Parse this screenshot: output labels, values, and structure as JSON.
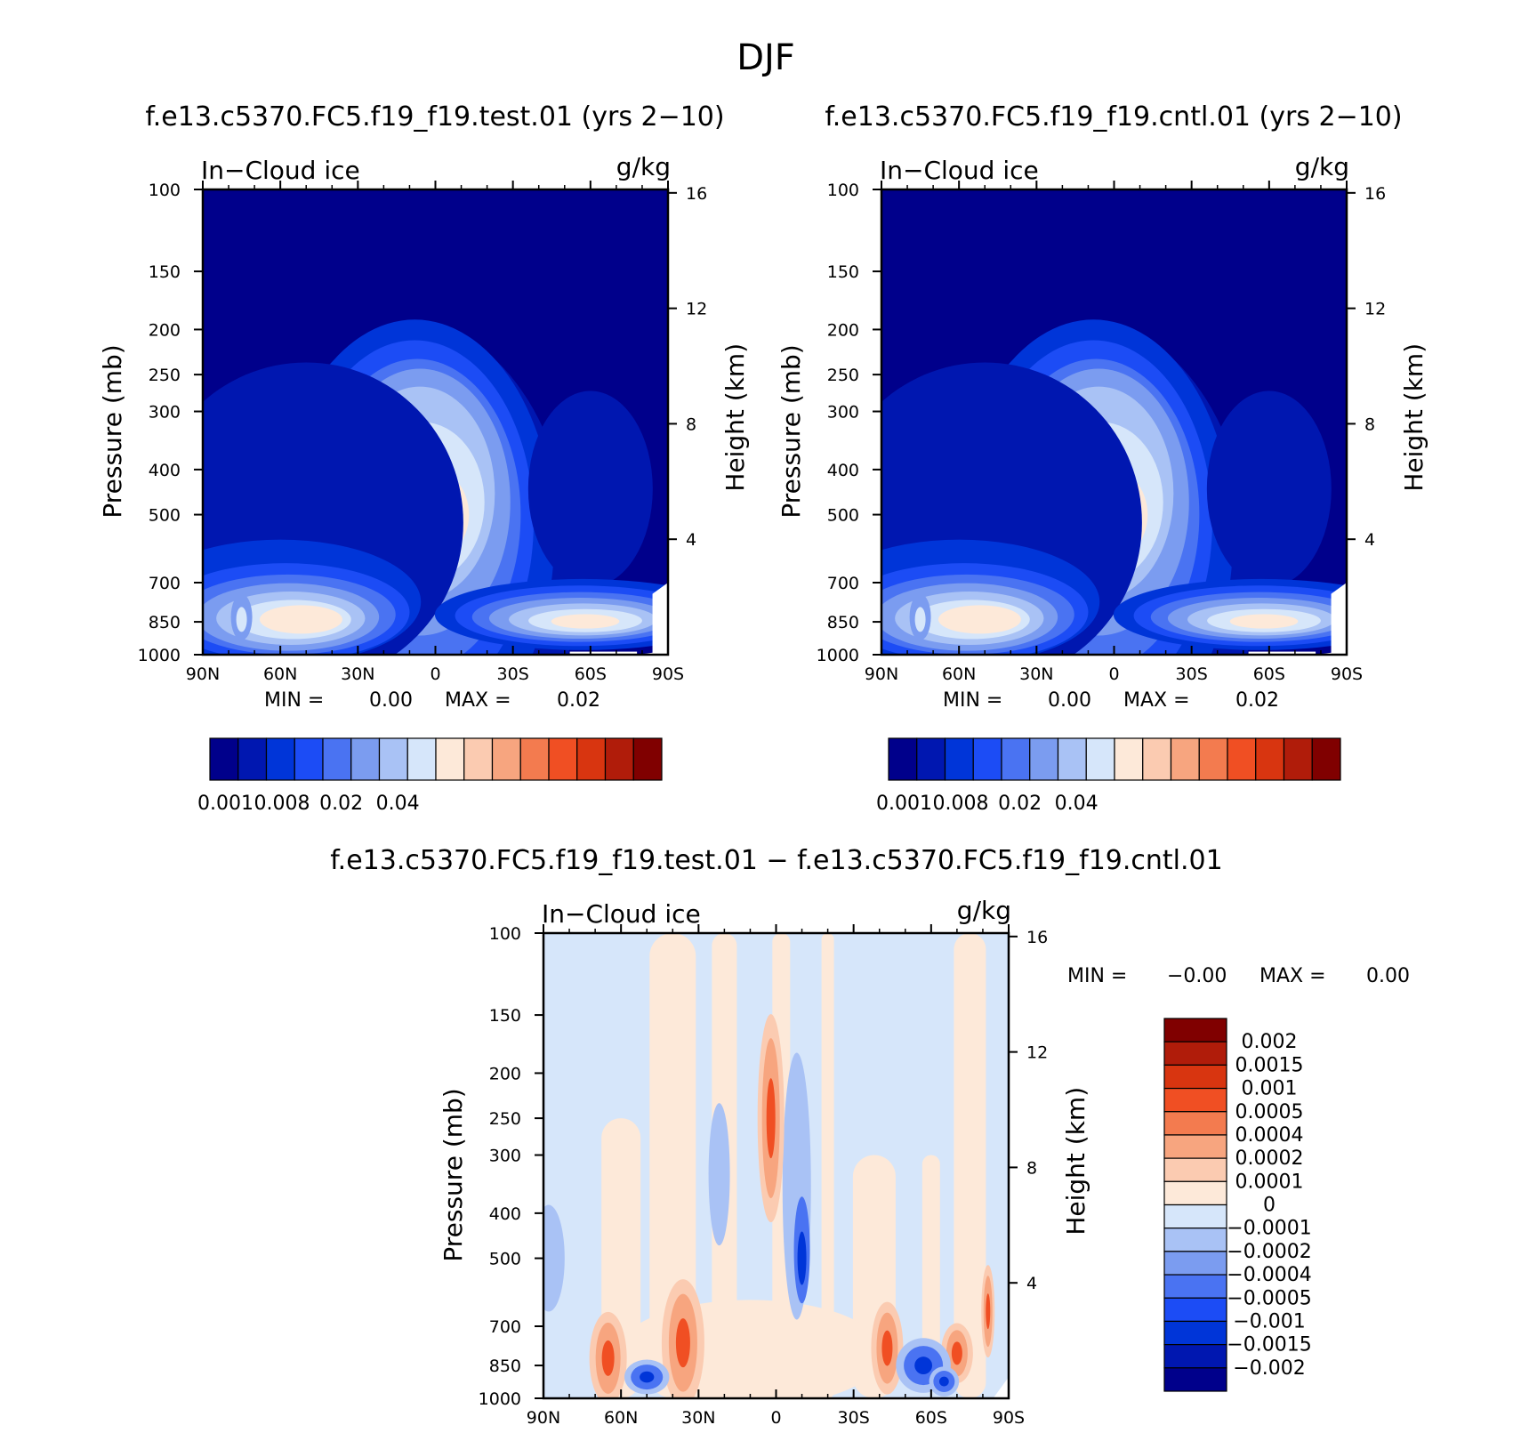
{
  "figure": {
    "season": "DJF",
    "run_test_title": "f.e13.c5370.FC5.f19_f19.test.01 (yrs 2−10)",
    "run_cntl_title": "f.e13.c5370.FC5.f19_f19.cntl.01 (yrs 2−10)",
    "diff_title": "f.e13.c5370.FC5.f19_f19.test.01 − f.e13.c5370.FC5.f19_f19.cntl.01"
  },
  "chart_data": [
    {
      "id": "test",
      "type": "heatmap",
      "variable": "In−Cloud ice",
      "units": "g/kg",
      "xlabel": "",
      "ylabel": "Pressure (mb)",
      "y2label": "Height (km)",
      "xticks": [
        "90N",
        "60N",
        "30N",
        "0",
        "30S",
        "60S",
        "90S"
      ],
      "yticks": [
        "100",
        "150",
        "200",
        "250",
        "300",
        "400",
        "500",
        "700",
        "850",
        "1000"
      ],
      "y2ticks": [
        "16",
        "12",
        "8",
        "4"
      ],
      "min_label": "MIN =",
      "min_value": "0.00",
      "max_label": "MAX =",
      "max_value": "0.02",
      "colorbar": {
        "labels": [
          "0.001",
          "0.008",
          "0.02",
          "0.04"
        ],
        "colors": [
          "#00008b",
          "#0017b0",
          "#0035d8",
          "#1c4cf5",
          "#4a73f2",
          "#7b9cf0",
          "#a9c2f5",
          "#d6e6fa",
          "#fde9d9",
          "#fbcbb1",
          "#f7a57f",
          "#f37b4f",
          "#f04f23",
          "#d83510",
          "#b01c0a",
          "#800000"
        ]
      },
      "features": [
        {
          "lat": 5,
          "p": 500,
          "value": 0.02
        },
        {
          "lat": 62,
          "p": 850,
          "value": 0.02
        },
        {
          "lat": -58,
          "p": 830,
          "value": 0.015
        },
        {
          "lat": -40,
          "p": 820,
          "value": 0.015
        }
      ]
    },
    {
      "id": "cntl",
      "type": "heatmap",
      "variable": "In−Cloud ice",
      "units": "g/kg",
      "xlabel": "",
      "ylabel": "Pressure (mb)",
      "y2label": "Height (km)",
      "xticks": [
        "90N",
        "60N",
        "30N",
        "0",
        "30S",
        "60S",
        "90S"
      ],
      "yticks": [
        "100",
        "150",
        "200",
        "250",
        "300",
        "400",
        "500",
        "700",
        "850",
        "1000"
      ],
      "y2ticks": [
        "16",
        "12",
        "8",
        "4"
      ],
      "min_label": "MIN =",
      "min_value": "0.00",
      "max_label": "MAX =",
      "max_value": "0.02",
      "colorbar": {
        "labels": [
          "0.001",
          "0.008",
          "0.02",
          "0.04"
        ],
        "colors": [
          "#00008b",
          "#0017b0",
          "#0035d8",
          "#1c4cf5",
          "#4a73f2",
          "#7b9cf0",
          "#a9c2f5",
          "#d6e6fa",
          "#fde9d9",
          "#fbcbb1",
          "#f7a57f",
          "#f37b4f",
          "#f04f23",
          "#d83510",
          "#b01c0a",
          "#800000"
        ]
      },
      "features": [
        {
          "lat": 5,
          "p": 500,
          "value": 0.02
        },
        {
          "lat": 62,
          "p": 850,
          "value": 0.02
        },
        {
          "lat": -58,
          "p": 830,
          "value": 0.015
        },
        {
          "lat": -40,
          "p": 820,
          "value": 0.015
        }
      ]
    },
    {
      "id": "diff",
      "type": "heatmap",
      "variable": "In−Cloud ice",
      "units": "g/kg",
      "xlabel": "",
      "ylabel": "Pressure (mb)",
      "y2label": "Height (km)",
      "xticks": [
        "90N",
        "60N",
        "30N",
        "0",
        "30S",
        "60S",
        "90S"
      ],
      "yticks": [
        "100",
        "150",
        "200",
        "250",
        "300",
        "400",
        "500",
        "700",
        "850",
        "1000"
      ],
      "y2ticks": [
        "16",
        "12",
        "8",
        "4"
      ],
      "min_label": "MIN =",
      "min_value": "−0.00",
      "max_label": "MAX =",
      "max_value": "0.00",
      "colorbar": {
        "labels": [
          "0.002",
          "0.0015",
          "0.001",
          "0.0005",
          "0.0004",
          "0.0002",
          "0.0001",
          "0",
          "−0.0001",
          "−0.0002",
          "−0.0004",
          "−0.0005",
          "−0.001",
          "−0.0015",
          "−0.002"
        ],
        "colors": [
          "#800000",
          "#b01c0a",
          "#d83510",
          "#f04f23",
          "#f37b4f",
          "#f7a57f",
          "#fbcbb1",
          "#fde9d9",
          "#d6e6fa",
          "#a9c2f5",
          "#7b9cf0",
          "#4a73f2",
          "#1c4cf5",
          "#0035d8",
          "#0017b0",
          "#00008b"
        ]
      },
      "features": [
        {
          "lat": 65,
          "p": 820,
          "value": 0.0005
        },
        {
          "lat": 36,
          "p": 780,
          "value": 0.0005
        },
        {
          "lat": -43,
          "p": 790,
          "value": 0.0005
        },
        {
          "lat": -70,
          "p": 800,
          "value": 0.0004
        },
        {
          "lat": -10,
          "p": 480,
          "value": -0.001
        },
        {
          "lat": -57,
          "p": 850,
          "value": -0.0005
        }
      ]
    }
  ]
}
